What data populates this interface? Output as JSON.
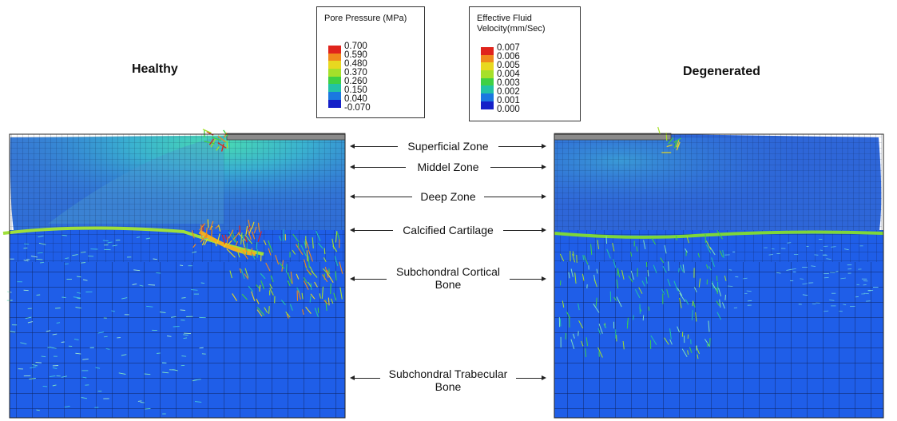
{
  "models": {
    "left_title": "Healthy",
    "right_title": "Degenerated"
  },
  "legend_pressure": {
    "title": "Pore Pressure (MPa)",
    "labels": [
      "0.700",
      "0.590",
      "0.480",
      "0.370",
      "0.260",
      "0.150",
      "0.040",
      "-0.070"
    ]
  },
  "legend_velocity": {
    "title_line1": "Effective Fluid",
    "title_line2": "Velocity(mm/Sec)",
    "labels": [
      "0.007",
      "0.006",
      "0.005",
      "0.004",
      "0.003",
      "0.002",
      "0.001",
      "0.000"
    ]
  },
  "zones": {
    "superficial": "Superficial Zone",
    "middle": "Middel Zone",
    "deep": "Deep Zone",
    "calcified": "Calcified Cartilage",
    "cortical_line1": "Subchondral Cortical",
    "cortical_line2": "Bone",
    "trabecular_line1": "Subchondral Trabecular",
    "trabecular_line2": "Bone"
  },
  "colors": {
    "scale": [
      "#e0241c",
      "#f08a1c",
      "#e8d820",
      "#a6e02a",
      "#3fd044",
      "#22c2a6",
      "#1a78e0",
      "#1420c8"
    ],
    "bone_blue": "#1e5ce6",
    "cartilage_blue": "#3f7ed6",
    "indenter_gray": "#8a8a8a"
  }
}
